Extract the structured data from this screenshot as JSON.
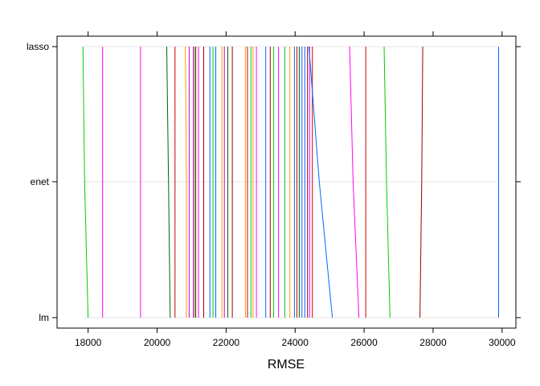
{
  "chart_data": {
    "type": "line",
    "title": "",
    "xlabel": "RMSE",
    "ylabel": "",
    "categories": [
      "lm",
      "enet",
      "lasso"
    ],
    "xlim": [
      17100,
      30400
    ],
    "xticks": [
      18000,
      20000,
      22000,
      24000,
      26000,
      28000,
      30000
    ],
    "xtick_labels": [
      "18000",
      "20000",
      "22000",
      "24000",
      "26000",
      "28000",
      "30000"
    ],
    "grid": "horizontal",
    "series": [
      {
        "color": "#00CC00",
        "values": [
          18000,
          17900,
          17850
        ]
      },
      {
        "color": "#FF00FF",
        "values": [
          18420,
          18420,
          18420
        ]
      },
      {
        "color": "#FF00FF",
        "values": [
          19520,
          19520,
          19520
        ]
      },
      {
        "color": "#006400",
        "values": [
          20380,
          20330,
          20280
        ]
      },
      {
        "color": "#CC0000",
        "values": [
          20520,
          20520,
          20520
        ]
      },
      {
        "color": "#FF9900",
        "values": [
          20850,
          20850,
          20820
        ]
      },
      {
        "color": "#CC00CC",
        "values": [
          20930,
          20930,
          20930
        ]
      },
      {
        "color": "#FF00FF",
        "values": [
          21050,
          21050,
          21050
        ]
      },
      {
        "color": "#00CC00",
        "values": [
          21080,
          21080,
          21080
        ]
      },
      {
        "color": "#990000",
        "values": [
          21120,
          21120,
          21120
        ]
      },
      {
        "color": "#FF00FF",
        "values": [
          21200,
          21200,
          21200
        ]
      },
      {
        "color": "#990000",
        "values": [
          21350,
          21350,
          21350
        ]
      },
      {
        "color": "#0066FF",
        "values": [
          21530,
          21530,
          21530
        ]
      },
      {
        "color": "#00CC00",
        "values": [
          21620,
          21620,
          21620
        ]
      },
      {
        "color": "#0066FF",
        "values": [
          21700,
          21700,
          21700
        ]
      },
      {
        "color": "#FF9900",
        "values": [
          21880,
          21880,
          21880
        ]
      },
      {
        "color": "#CC00CC",
        "values": [
          21950,
          21950,
          21950
        ]
      },
      {
        "color": "#006400",
        "values": [
          22050,
          22050,
          22050
        ]
      },
      {
        "color": "#990000",
        "values": [
          22180,
          22180,
          22180
        ]
      },
      {
        "color": "#FF9900",
        "values": [
          22560,
          22560,
          22560
        ]
      },
      {
        "color": "#CC0000",
        "values": [
          22620,
          22620,
          22620
        ]
      },
      {
        "color": "#00CC00",
        "values": [
          22720,
          22720,
          22720
        ]
      },
      {
        "color": "#FF9900",
        "values": [
          22780,
          22780,
          22780
        ]
      },
      {
        "color": "#FF00FF",
        "values": [
          22880,
          22880,
          22880
        ]
      },
      {
        "color": "#0066FF",
        "values": [
          23150,
          23150,
          23150
        ]
      },
      {
        "color": "#990000",
        "values": [
          23280,
          23280,
          23280
        ]
      },
      {
        "color": "#00CC00",
        "values": [
          23380,
          23380,
          23380
        ]
      },
      {
        "color": "#FF00FF",
        "values": [
          23520,
          23520,
          23520
        ]
      },
      {
        "color": "#00CC00",
        "values": [
          23700,
          23700,
          23700
        ]
      },
      {
        "color": "#FF9900",
        "values": [
          23850,
          23850,
          23850
        ]
      },
      {
        "color": "#0066FF",
        "values": [
          23980,
          23980,
          23980
        ]
      },
      {
        "color": "#CC0000",
        "values": [
          24050,
          24050,
          24050
        ]
      },
      {
        "color": "#006400",
        "values": [
          24120,
          24120,
          24120
        ]
      },
      {
        "color": "#0066FF",
        "values": [
          24200,
          24200,
          24200
        ]
      },
      {
        "color": "#0066FF",
        "values": [
          24280,
          24280,
          24280
        ]
      },
      {
        "color": "#990000",
        "values": [
          24360,
          24360,
          24360
        ]
      },
      {
        "color": "#FF00FF",
        "values": [
          24420,
          24420,
          24420
        ]
      },
      {
        "color": "#CC0000",
        "values": [
          24500,
          24500,
          24500
        ]
      },
      {
        "color": "#0066FF",
        "values": [
          25080,
          24700,
          24400
        ]
      },
      {
        "color": "#FF00FF",
        "values": [
          25850,
          25680,
          25580
        ]
      },
      {
        "color": "#CC0000",
        "values": [
          26050,
          26050,
          26050
        ]
      },
      {
        "color": "#00CC00",
        "values": [
          26750,
          26650,
          26580
        ]
      },
      {
        "color": "#990000",
        "values": [
          27620,
          27670,
          27700
        ]
      },
      {
        "color": "#0066FF",
        "values": [
          29900,
          29900,
          29900
        ]
      }
    ]
  }
}
